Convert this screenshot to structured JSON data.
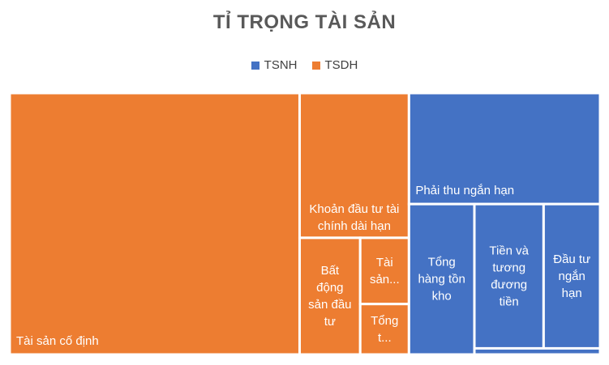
{
  "chart_data": {
    "type": "treemap",
    "title": "TỈ TRỌNG TÀI SẢN",
    "legend": {
      "placement": "top",
      "entries": [
        {
          "name": "TSNH",
          "color": "#4472C4"
        },
        {
          "name": "TSDH",
          "color": "#ED7D31"
        }
      ]
    },
    "series": [
      {
        "name": "TSDH",
        "color": "#ED7D31",
        "items": [
          {
            "label": "Tài sản cố định",
            "value": 49.3
          },
          {
            "label": "Khoản đầu tư tài chính dài hạn",
            "value": 10.3
          },
          {
            "label": "Bất động sản đầu tư",
            "value": 4.6
          },
          {
            "label": "Tài sản...",
            "value": 2.1
          },
          {
            "label": "Tổng t...",
            "value": 1.6
          }
        ]
      },
      {
        "name": "TSNH",
        "color": "#4472C4",
        "items": [
          {
            "label": "Phải thu ngắn hạn",
            "value": 13.8
          },
          {
            "label": "Tổng hàng tồn kho",
            "value": 6.4
          },
          {
            "label": "Tiền và tương đương tiền",
            "value": 6.5
          },
          {
            "label": "Đầu tư ngắn hạn",
            "value": 5.3
          },
          {
            "label": "",
            "value": 0.5
          }
        ]
      }
    ]
  }
}
